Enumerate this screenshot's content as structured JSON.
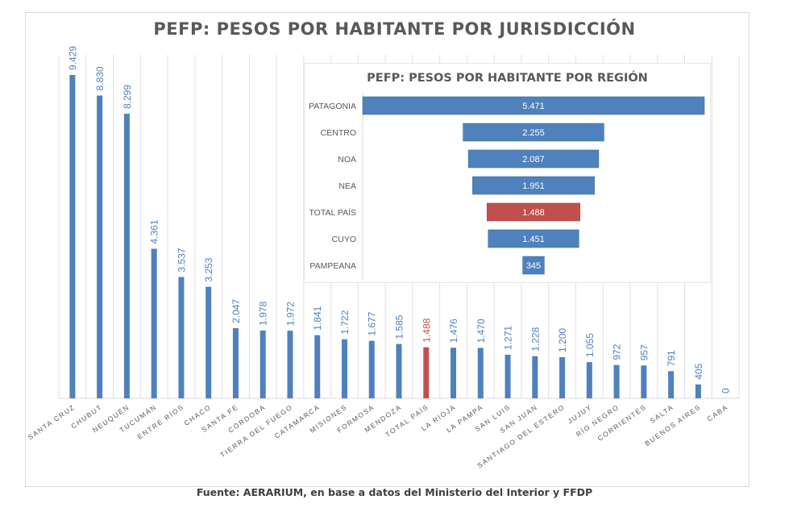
{
  "page": {
    "source": "Fuente: AERARIUM, en base a datos del Ministerio del Interior y FFDP"
  },
  "colors": {
    "bar": "#4f81bd",
    "highlight": "#c0504d",
    "label": "#4f81bd",
    "grid": "#e0e0e0",
    "axis_text": "#595959"
  },
  "chart_data": [
    {
      "type": "bar",
      "title": "PEFP: PESOS POR HABITANTE POR JURISDICCIÓN",
      "xlabel": "",
      "ylabel": "",
      "ylim": [
        0,
        10000
      ],
      "grid": "vertical category separators",
      "legend": "none",
      "highlight_category": "TOTAL PAÍS",
      "categories": [
        "SANTA CRUZ",
        "CHUBUT",
        "NEUQUÉN",
        "TUCUMÁN",
        "ENTRE RÍOS",
        "CHACO",
        "SANTA FE",
        "CÓRDOBA",
        "TIERRA DEL FUEGO",
        "CATAMARCA",
        "MISIONES",
        "FORMOSA",
        "MENDOZA",
        "TOTAL PAÍS",
        "LA RIOJA",
        "LA PAMPA",
        "SAN LUIS",
        "SAN JUAN",
        "SANTIAGO DEL ESTERO",
        "JUJUY",
        "RÍO NEGRO",
        "CORRIENTES",
        "SALTA",
        "BUENOS AIRES",
        "CABA"
      ],
      "values": [
        9429,
        8830,
        8299,
        4361,
        3537,
        3253,
        2047,
        1978,
        1972,
        1841,
        1722,
        1677,
        1585,
        1488,
        1476,
        1470,
        1271,
        1228,
        1200,
        1055,
        972,
        957,
        791,
        405,
        0
      ],
      "labels": [
        "9.429",
        "8.830",
        "8.299",
        "4.361",
        "3.537",
        "3.253",
        "2.047",
        "1.978",
        "1.972",
        "1.841",
        "1.722",
        "1.677",
        "1.585",
        "1.488",
        "1.476",
        "1.470",
        "1.271",
        "1.228",
        "1.200",
        "1.055",
        "972",
        "957",
        "791",
        "405",
        "0"
      ]
    },
    {
      "type": "bar",
      "orientation": "horizontal-funnel",
      "title": "PEFP: PESOS POR HABITANTE POR REGIÓN",
      "xlabel": "",
      "ylabel": "",
      "xlim": [
        0,
        5471
      ],
      "legend": "none",
      "highlight_category": "TOTAL PAÍS",
      "categories": [
        "PATAGONIA",
        "CENTRO",
        "NOA",
        "NEA",
        "TOTAL PAÍS",
        "CUYO",
        "PAMPEANA"
      ],
      "values": [
        5471,
        2255,
        2087,
        1951,
        1488,
        1451,
        345
      ],
      "labels": [
        "5.471",
        "2.255",
        "2.087",
        "1.951",
        "1.488",
        "1.451",
        "345"
      ]
    }
  ]
}
